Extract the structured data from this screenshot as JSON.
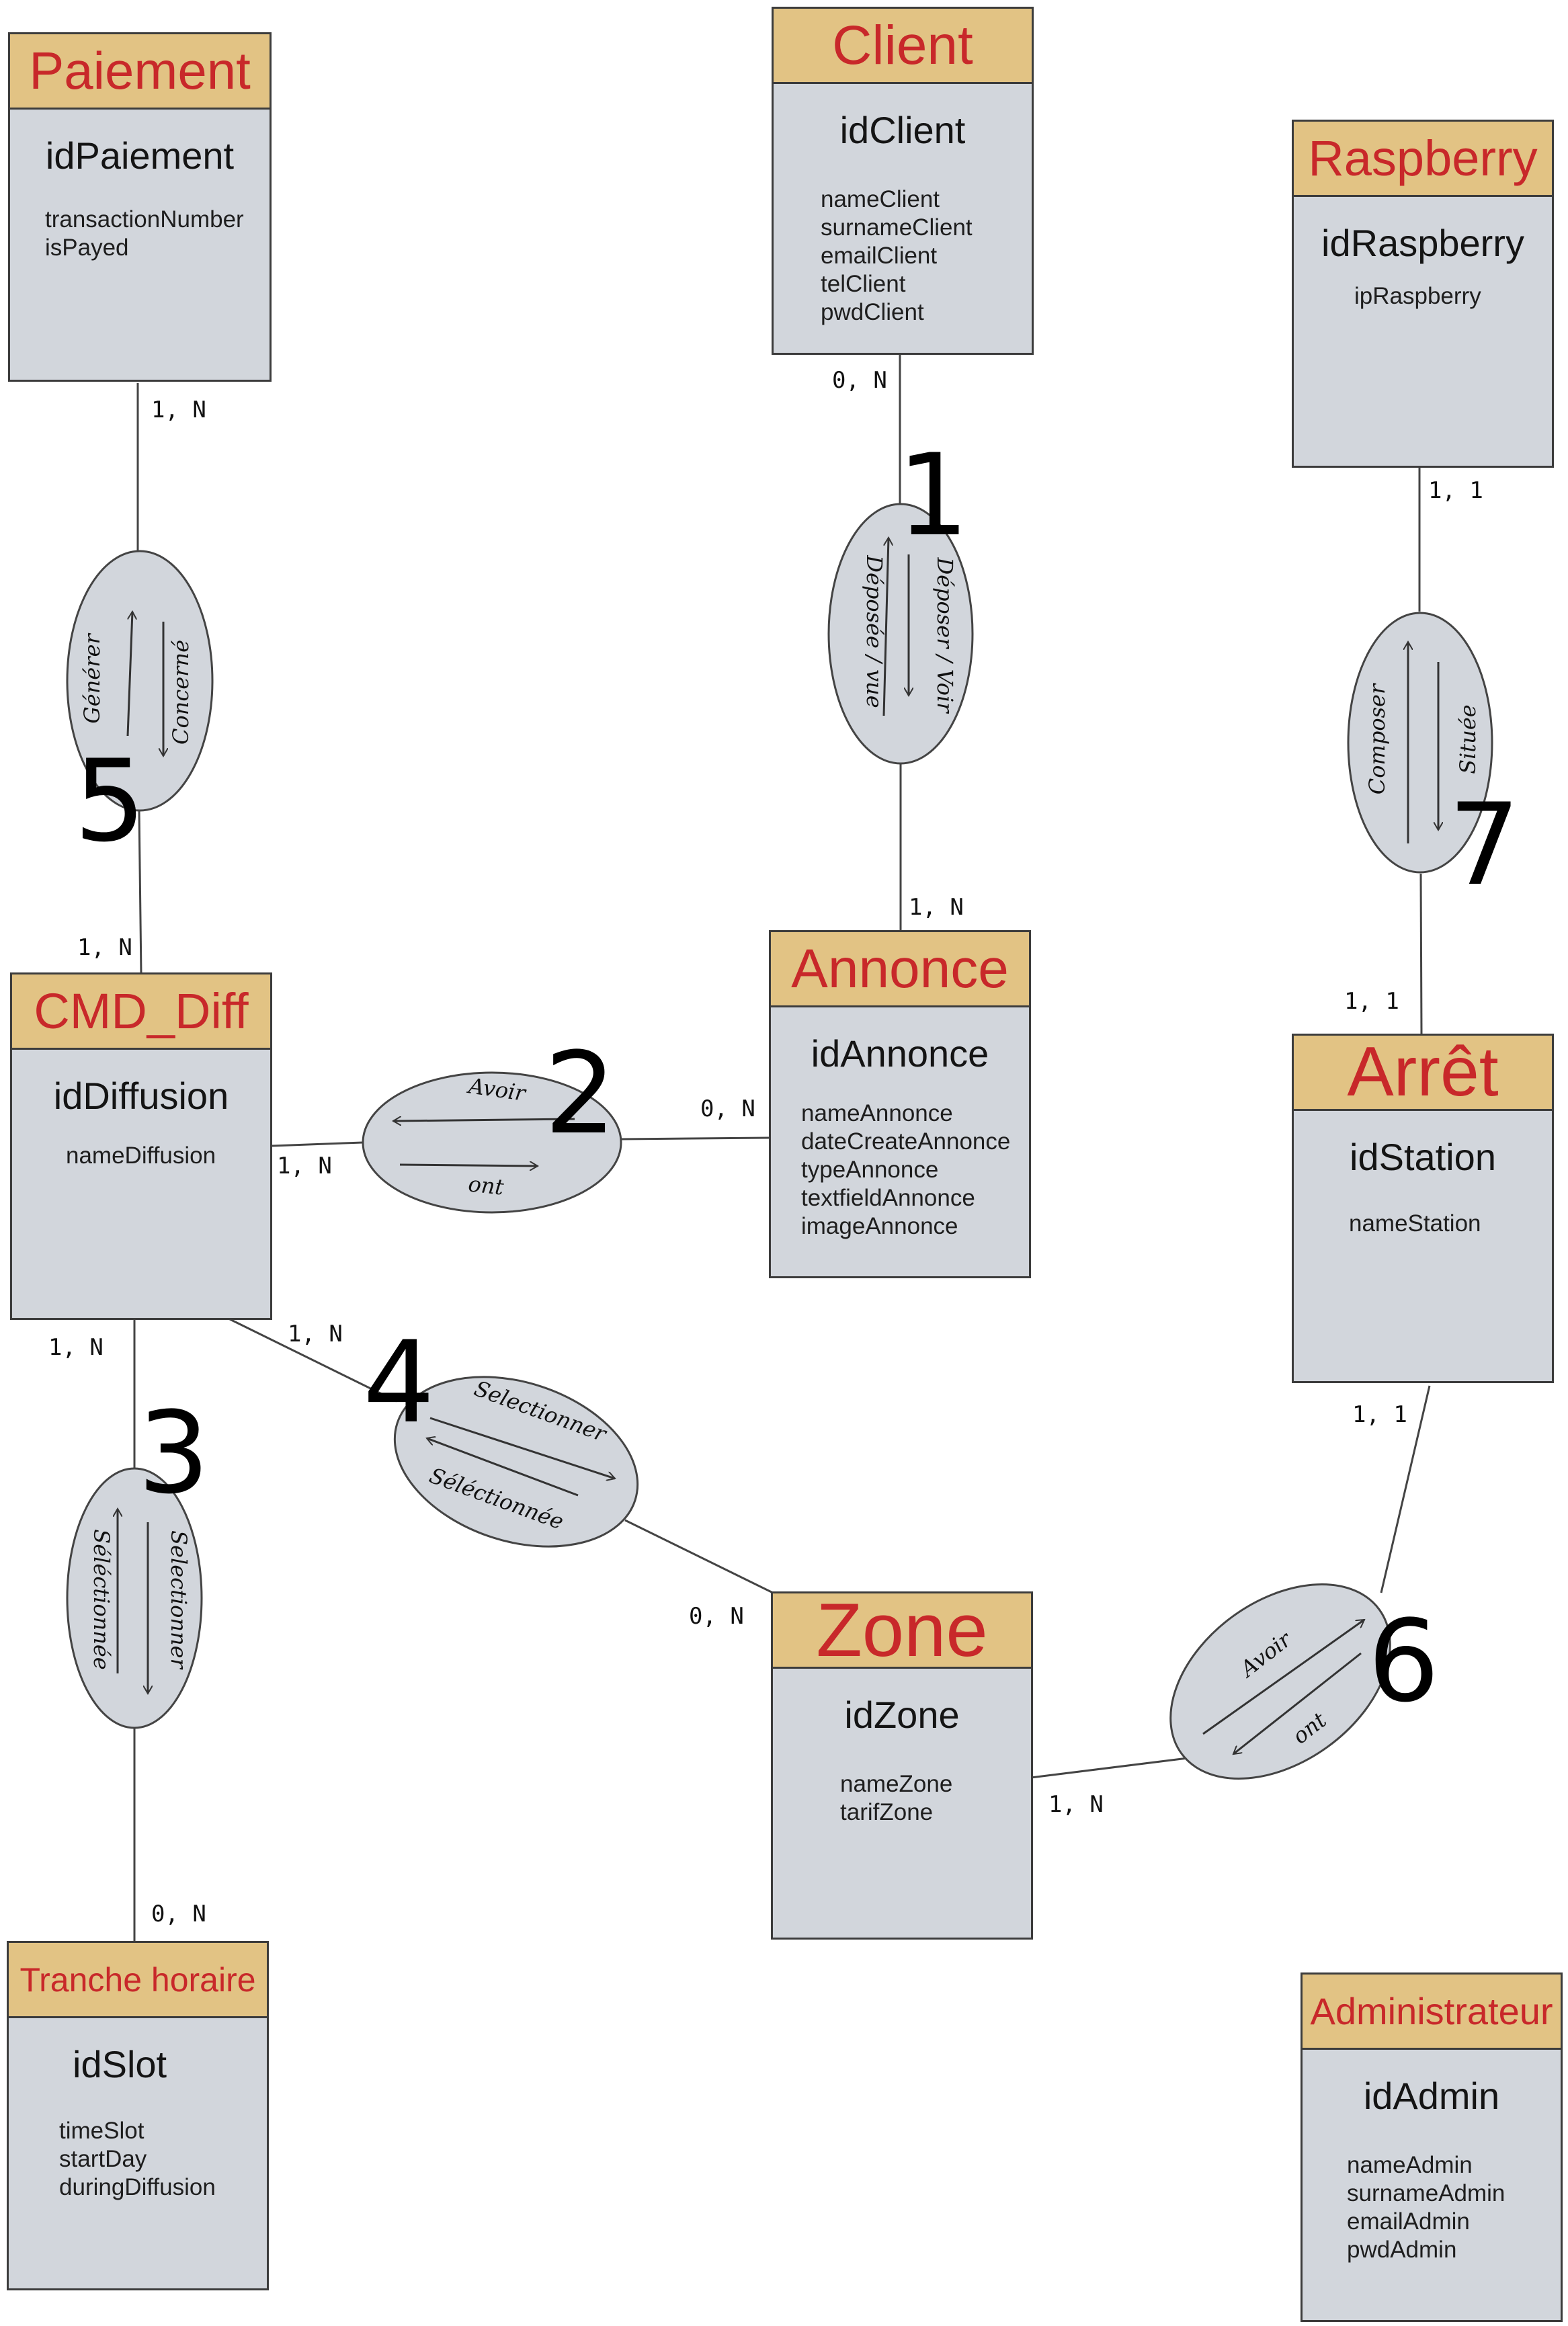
{
  "entities": {
    "paiement": {
      "title": "Paiement",
      "id": "idPaiement",
      "attributes": [
        "transactionNumber",
        "isPayed"
      ]
    },
    "client": {
      "title": "Client",
      "id": "idClient",
      "attributes": [
        "nameClient",
        "surnameClient",
        "emailClient",
        "telClient",
        "pwdClient"
      ]
    },
    "raspberry": {
      "title": "Raspberry",
      "id": "idRaspberry",
      "attributes": [
        "ipRaspberry"
      ]
    },
    "cmd_diff": {
      "title": "CMD_Diff",
      "id": "idDiffusion",
      "attributes": [
        "nameDiffusion"
      ]
    },
    "annonce": {
      "title": "Annonce",
      "id": "idAnnonce",
      "attributes": [
        "nameAnnonce",
        "dateCreateAnnonce",
        "typeAnnonce",
        "textfieldAnnonce",
        "imageAnnonce"
      ]
    },
    "arret": {
      "title": "Arrêt",
      "id": "idStation",
      "attributes": [
        "nameStation"
      ]
    },
    "zone": {
      "title": "Zone",
      "id": "idZone",
      "attributes": [
        "nameZone",
        "tarifZone"
      ]
    },
    "tranche": {
      "title": "Tranche horaire",
      "id": "idSlot",
      "attributes": [
        "timeSlot",
        "startDay",
        "duringDiffusion"
      ]
    },
    "admin": {
      "title": "Administrateur",
      "id": "idAdmin",
      "attributes": [
        "nameAdmin",
        "surnameAdmin",
        "emailAdmin",
        "pwdAdmin"
      ]
    }
  },
  "associations": {
    "a1": {
      "number": "1",
      "label_a": "Déposer / Voir",
      "label_b": "Déposée / vue"
    },
    "a2": {
      "number": "2",
      "label_a": "Avoir",
      "label_b": "ont"
    },
    "a3": {
      "number": "3",
      "label_a": "Selectionner",
      "label_b": "Séléctionnée"
    },
    "a4": {
      "number": "4",
      "label_a": "Selectionner",
      "label_b": "Séléctionnée"
    },
    "a5": {
      "number": "5",
      "label_a": "Générer",
      "label_b": "Concerné"
    },
    "a6": {
      "number": "6",
      "label_a": "Avoir",
      "label_b": "ont"
    },
    "a7": {
      "number": "7",
      "label_a": "Composer",
      "label_b": "Située"
    }
  },
  "cardinalities": {
    "paiement_a5": "1, N",
    "client_a1": "0, N",
    "annonce_a1": "1, N",
    "raspberry_a7": "1, 1",
    "arret_a7": "1, 1",
    "cmd_a5": "1, N",
    "cmd_a2": "1, N",
    "annonce_a2": "0, N",
    "cmd_a3": "1, N",
    "cmd_a4": "1, N",
    "zone_a4": "0, N",
    "arret_a6": "1, 1",
    "zone_a6": "1, N",
    "tranche_a3": "0, N"
  },
  "colors": {
    "entity_header": "#e2c384",
    "entity_body": "#d2d6dc",
    "title_red": "#c8282a",
    "association_fill": "#d2d6dc"
  }
}
